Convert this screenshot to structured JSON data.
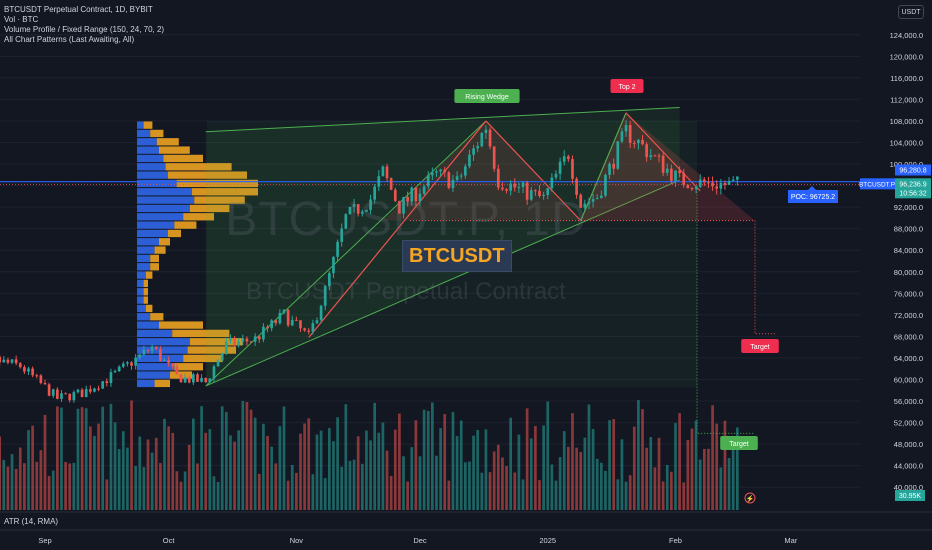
{
  "legend": {
    "line1": "BTCUSDT Perpetual Contract, 1D, BYBIT",
    "line2": "Vol · BTC",
    "line3": "Volume Profile / Fixed Range (150, 24, 70, 2)",
    "line4": "All Chart Patterns (Last Awaiting, All)"
  },
  "currency": "USDT",
  "watermark": {
    "symbol_big": "BTCUSDT.P, 1D",
    "name": "BTCUSDT Perpetual Contract"
  },
  "symbol_box": "BTCUSDT",
  "pane_label": "ATR (14, RMA)",
  "annotations": {
    "rising_wedge": "Rising Wedge",
    "top2": "Top 2",
    "target_red": "Target",
    "target_green": "Target",
    "poc": "POC: 96725.2"
  },
  "price_tags": {
    "p1": "96,280.8",
    "p2": "96,236.9",
    "p2b": "10:56:32",
    "symbol": "BTCUSDT.P",
    "atr": "30.95K"
  },
  "colors": {
    "bg": "#131722",
    "up": "#26a69a",
    "down": "#ef5350",
    "wedge": "#4caf50",
    "red": "#ef5350",
    "blue": "#2962ff",
    "vp_up": "#2c5fd6",
    "vp_down": "#d89420"
  },
  "chart_data": {
    "type": "candlestick",
    "x_axis": {
      "labels": [
        "Sep",
        "Oct",
        "Nov",
        "Dec",
        "2025",
        "Feb",
        "Mar"
      ]
    },
    "y_axis": {
      "range": [
        38000,
        126000
      ],
      "ticks": [
        124000,
        120000,
        116000,
        112000,
        108000,
        104000,
        100000,
        96000,
        92000,
        88000,
        84000,
        80000,
        76000,
        72000,
        68000,
        64000,
        60000,
        56000,
        52000,
        48000,
        44000,
        40000
      ]
    },
    "anchors": [
      [
        "2024-08-12",
        59500
      ],
      [
        "2024-08-20",
        63500
      ],
      [
        "2024-08-26",
        62500
      ],
      [
        "2024-09-04",
        56500
      ],
      [
        "2024-09-10",
        57500
      ],
      [
        "2024-09-18",
        61000
      ],
      [
        "2024-09-27",
        66000
      ],
      [
        "2024-10-03",
        60500
      ],
      [
        "2024-10-10",
        59500
      ],
      [
        "2024-10-15",
        66500
      ],
      [
        "2024-10-22",
        67500
      ],
      [
        "2024-10-29",
        72000
      ],
      [
        "2024-11-04",
        67800
      ],
      [
        "2024-11-08",
        76500
      ],
      [
        "2024-11-13",
        90000
      ],
      [
        "2024-11-19",
        93500
      ],
      [
        "2024-11-22",
        98500
      ],
      [
        "2024-11-26",
        92000
      ],
      [
        "2024-12-05",
        98000
      ],
      [
        "2024-12-10",
        96500
      ],
      [
        "2024-12-17",
        107000
      ],
      [
        "2024-12-20",
        97000
      ],
      [
        "2024-12-26",
        95000
      ],
      [
        "2024-12-31",
        93500
      ],
      [
        "2025-01-06",
        102000
      ],
      [
        "2025-01-09",
        92500
      ],
      [
        "2025-01-13",
        94000
      ],
      [
        "2025-01-20",
        106000
      ],
      [
        "2025-01-23",
        104000
      ],
      [
        "2025-01-27",
        101000
      ],
      [
        "2025-02-02",
        97000
      ],
      [
        "2025-02-07",
        96500
      ],
      [
        "2025-02-13",
        96200
      ],
      [
        "2025-02-16",
        96250
      ]
    ],
    "volume_profile": {
      "price_range": [
        58500,
        108000
      ],
      "buy": [
        8,
        15,
        17,
        21,
        23,
        24,
        16,
        10,
        6,
        4,
        3,
        3,
        3,
        4,
        6,
        6,
        8,
        10,
        14,
        17,
        21,
        24,
        26,
        25,
        18,
        14,
        13,
        12,
        10,
        9,
        6,
        3
      ],
      "sell": [
        7,
        10,
        13,
        18,
        22,
        24,
        26,
        20,
        6,
        3,
        2,
        2,
        2,
        3,
        4,
        4,
        5,
        5,
        6,
        10,
        14,
        18,
        23,
        30,
        37,
        36,
        30,
        18,
        14,
        10,
        6,
        4
      ]
    },
    "patterns": [
      {
        "type": "Rising Wedge"
      },
      {
        "type": "Top 2"
      }
    ],
    "poc": 96725.2,
    "last_price": 96236.9,
    "lower_pane": {
      "indicator": "ATR (14, RMA)",
      "value": "30.95K"
    }
  }
}
